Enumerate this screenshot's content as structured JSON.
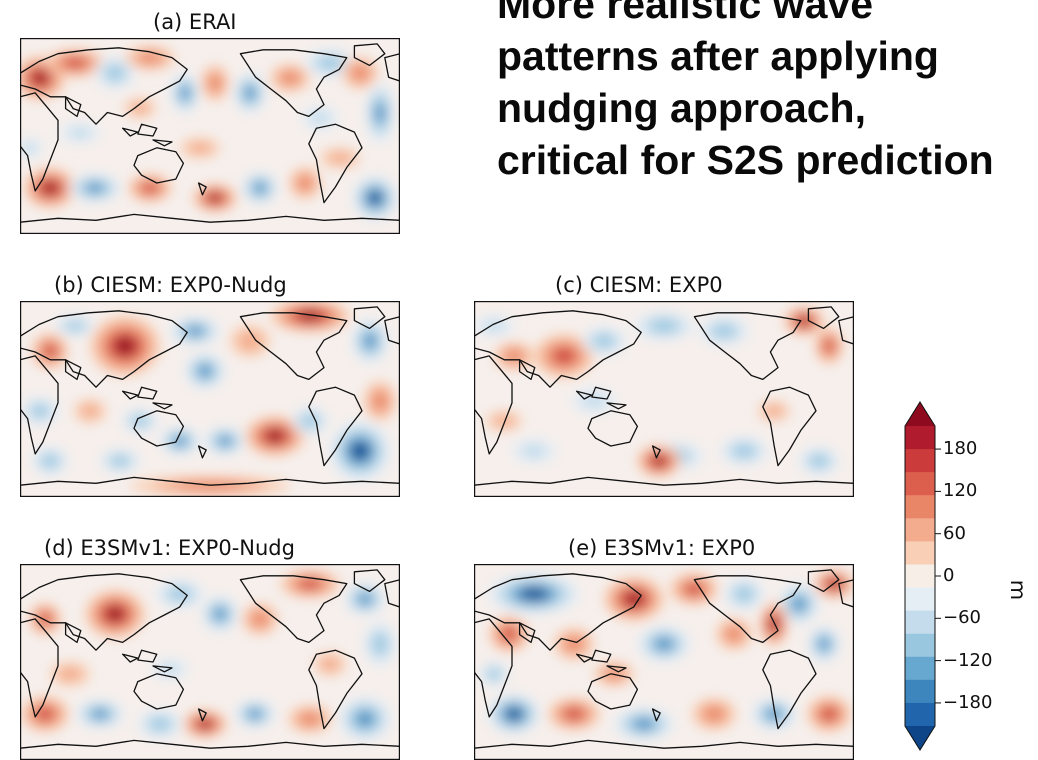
{
  "headline": {
    "lines": [
      "More realistic wave",
      "patterns after applying",
      "nudging approach,",
      "critical for S2S prediction"
    ]
  },
  "panels": [
    {
      "id": "a",
      "title": "(a) ERAI"
    },
    {
      "id": "b",
      "title": "(b) CIESM: EXP0-Nudg"
    },
    {
      "id": "c",
      "title": "(c) CIESM: EXP0"
    },
    {
      "id": "d",
      "title": "(d) E3SMv1: EXP0-Nudg"
    },
    {
      "id": "e",
      "title": "(e) E3SMv1: EXP0"
    }
  ],
  "chart_data": {
    "type": "heatmap",
    "colorbar": {
      "unit": "m",
      "ticks": [
        180,
        120,
        60,
        0,
        -60,
        -120,
        -180
      ],
      "tick_labels": [
        "180",
        "120",
        "60",
        "0",
        "−60",
        "−120",
        "−180"
      ],
      "range": [
        -210,
        210
      ],
      "levels": 15,
      "colors_top_to_bottom": [
        "#8e0a1f",
        "#b01b2d",
        "#cb3b3c",
        "#dc5f4d",
        "#e98668",
        "#f3ac8d",
        "#f9d0b6",
        "#f8eee8",
        "#e5eef5",
        "#c4dcec",
        "#9ac7e0",
        "#67a8d0",
        "#3d86bd",
        "#2166ac",
        "#0e4488"
      ]
    }
  }
}
